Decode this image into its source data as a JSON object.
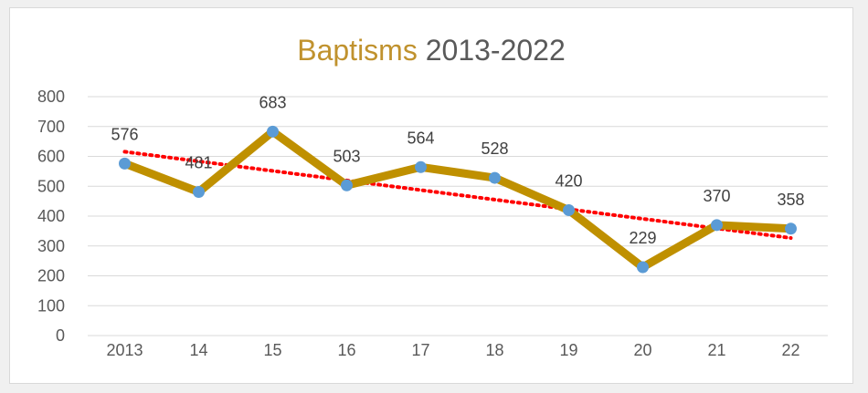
{
  "chart_data": {
    "type": "line",
    "title_prefix": "Baptisms",
    "title_suffix": " 2013-2022",
    "categories": [
      "2013",
      "14",
      "15",
      "16",
      "17",
      "18",
      "19",
      "20",
      "21",
      "22"
    ],
    "series": [
      {
        "values": [
          576,
          481,
          683,
          503,
          564,
          528,
          420,
          229,
          370,
          358
        ],
        "data_labels": [
          "576",
          "481",
          "683",
          "503",
          "564",
          "528",
          "420",
          "229",
          "370",
          "358"
        ],
        "color": "#bf9000",
        "marker_color": "#5b9bd5"
      }
    ],
    "trendline": {
      "type": "linear",
      "style": "dotted",
      "color": "#ff0000"
    },
    "ylim": [
      0,
      800
    ],
    "yticks": [
      0,
      100,
      200,
      300,
      400,
      500,
      600,
      700,
      800
    ],
    "grid": true,
    "legend": "none",
    "colors": {
      "title_accent": "#c0922e",
      "gridline": "#d9d9d9",
      "text": "#595959"
    }
  }
}
